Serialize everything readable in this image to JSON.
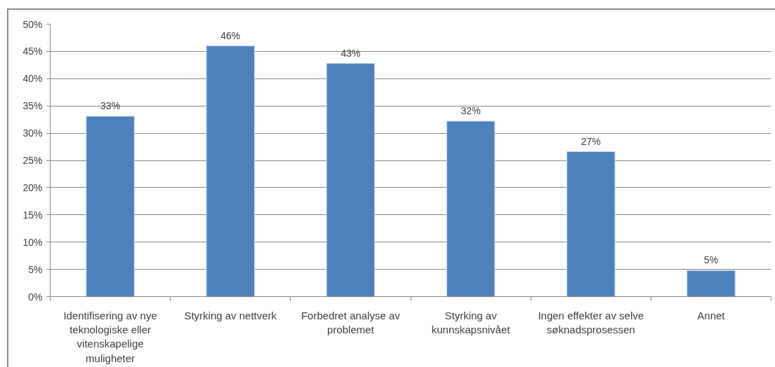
{
  "chart_data": {
    "type": "bar",
    "categories": [
      "Identifisering av nye teknologiske eller vitenskapelige muligheter",
      "Styrking av nettverk",
      "Forbedret analyse av problemet",
      "Styrking av kunnskapsnivået",
      "Ingen effekter av selve søknadsprosessen",
      "Annet"
    ],
    "values": [
      33.1,
      46.0,
      42.8,
      32.2,
      26.6,
      4.8
    ],
    "value_labels": [
      "33%",
      "46%",
      "43%",
      "32%",
      "27%",
      "5%"
    ],
    "color": "#4f81bd",
    "ylim": [
      0,
      50
    ],
    "yticks": [
      {
        "value": 0,
        "label": "0%"
      },
      {
        "value": 5,
        "label": "5%"
      },
      {
        "value": 10,
        "label": "10%"
      },
      {
        "value": 15,
        "label": "15%"
      },
      {
        "value": 20,
        "label": "20%"
      },
      {
        "value": 25,
        "label": "25%"
      },
      {
        "value": 30,
        "label": "30%"
      },
      {
        "value": 35,
        "label": "35%"
      },
      {
        "value": 40,
        "label": "40%"
      },
      {
        "value": 45,
        "label": "45%"
      },
      {
        "value": 50,
        "label": "50%"
      }
    ],
    "grid": "y"
  }
}
